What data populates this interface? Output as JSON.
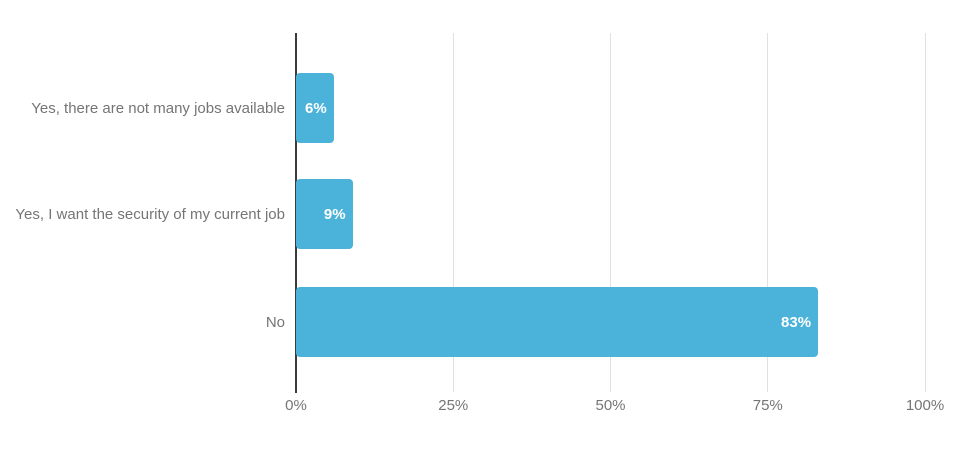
{
  "chart_data": {
    "type": "bar",
    "orientation": "horizontal",
    "title": "",
    "xlabel": "",
    "ylabel": "",
    "categories": [
      "Yes, there are not many jobs available",
      "Yes, I want the security of my current job",
      "No"
    ],
    "values": [
      6,
      9,
      83
    ],
    "value_labels": [
      "6%",
      "9%",
      "83%"
    ],
    "xlim": [
      0,
      100
    ],
    "x_ticks": [
      {
        "label": "0%",
        "value": 0
      },
      {
        "label": "25%",
        "value": 25
      },
      {
        "label": "50%",
        "value": 50
      },
      {
        "label": "75%",
        "value": 75
      },
      {
        "label": "100%",
        "value": 100
      }
    ],
    "grid": true,
    "legend": false,
    "colors": {
      "bar": "#4bb2d9",
      "value_label": "#ffffff",
      "category_label": "#757575",
      "tick_label": "#757575",
      "gridline": "#e0e0e0",
      "zero_axis": "#3a3a3a",
      "background": "#ffffff"
    }
  }
}
